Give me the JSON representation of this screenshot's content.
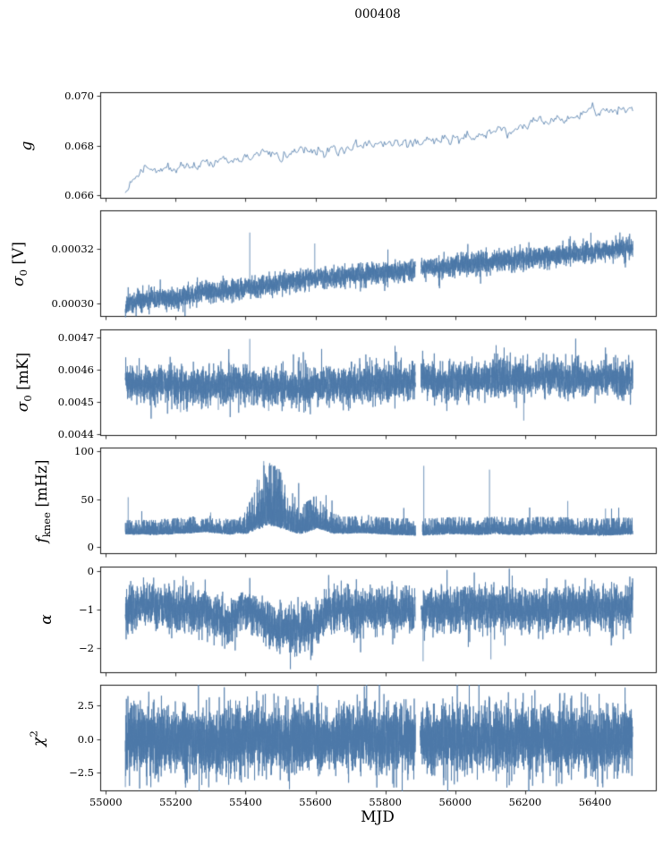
{
  "figure": {
    "title": "000408",
    "background": "#ffffff",
    "axis_color": "#000000",
    "series_color": "#4d79a8"
  },
  "chart_data": {
    "type": "line",
    "title": "000408",
    "xlabel": "MJD",
    "grid": false,
    "legend": null,
    "series_color": "#4d79a8",
    "xlim": [
      54984,
      56574
    ],
    "x_data_range": [
      55056,
      56508
    ],
    "xticks": [
      {
        "v": 55000,
        "t": "55000"
      },
      {
        "v": 55200,
        "t": "55200"
      },
      {
        "v": 55400,
        "t": "55400"
      },
      {
        "v": 55600,
        "t": "55600"
      },
      {
        "v": 55800,
        "t": "55800"
      },
      {
        "v": 56000,
        "t": "56000"
      },
      {
        "v": 56200,
        "t": "56200"
      },
      {
        "v": 56400,
        "t": "56400"
      }
    ],
    "panels": [
      {
        "name": "g",
        "ylabel": {
          "main": "g",
          "sub": "",
          "sup": "",
          "unit": ""
        },
        "ylim": [
          0.06585,
          0.07015
        ],
        "yticks": [
          {
            "v": 0.066,
            "t": "0.066"
          },
          {
            "v": 0.068,
            "t": "0.068"
          },
          {
            "v": 0.07,
            "t": "0.070"
          }
        ],
        "plot": {
          "kind": "line",
          "seed": 11,
          "n": 430,
          "sd": 0.00011,
          "center": [
            [
              55056,
              0.066
            ],
            [
              55070,
              0.0665
            ],
            [
              55090,
              0.0668
            ],
            [
              55110,
              0.0671
            ],
            [
              55130,
              0.067
            ],
            [
              55160,
              0.0671
            ],
            [
              55200,
              0.0671
            ],
            [
              55240,
              0.0672
            ],
            [
              55270,
              0.0674
            ],
            [
              55300,
              0.0674
            ],
            [
              55340,
              0.0675
            ],
            [
              55380,
              0.0675
            ],
            [
              55420,
              0.0676
            ],
            [
              55460,
              0.0677
            ],
            [
              55500,
              0.0676
            ],
            [
              55540,
              0.0677
            ],
            [
              55580,
              0.0677
            ],
            [
              55620,
              0.0678
            ],
            [
              55660,
              0.0678
            ],
            [
              55700,
              0.0679
            ],
            [
              55740,
              0.068
            ],
            [
              55780,
              0.0681
            ],
            [
              55820,
              0.0681
            ],
            [
              55860,
              0.068
            ],
            [
              55900,
              0.0681
            ],
            [
              55940,
              0.0683
            ],
            [
              55980,
              0.0682
            ],
            [
              56020,
              0.0683
            ],
            [
              56060,
              0.0684
            ],
            [
              56100,
              0.0685
            ],
            [
              56140,
              0.0686
            ],
            [
              56180,
              0.0687
            ],
            [
              56220,
              0.0689
            ],
            [
              56260,
              0.069
            ],
            [
              56300,
              0.0691
            ],
            [
              56340,
              0.0692
            ],
            [
              56380,
              0.0693
            ],
            [
              56420,
              0.0694
            ],
            [
              56460,
              0.0694
            ],
            [
              56508,
              0.0694
            ]
          ]
        }
      },
      {
        "name": "sigma0_V",
        "ylabel": {
          "main": "σ",
          "sub": "0",
          "sup": "",
          "unit": " [V]"
        },
        "ylim": [
          0.000295,
          0.000334
        ],
        "yticks": [
          {
            "v": 0.0003,
            "t": "0.00030"
          },
          {
            "v": 0.00032,
            "t": "0.00032"
          }
        ],
        "plot": {
          "kind": "band",
          "seed": 22,
          "n": 5200,
          "h": 3.6e-06,
          "center": [
            [
              55056,
              0.000299
            ],
            [
              55090,
              0.000301
            ],
            [
              55120,
              0.000302
            ],
            [
              55200,
              0.000302
            ],
            [
              55280,
              0.000304
            ],
            [
              55360,
              0.000305
            ],
            [
              55440,
              0.000306
            ],
            [
              55520,
              0.000308
            ],
            [
              55600,
              0.000309
            ],
            [
              55680,
              0.00031
            ],
            [
              55760,
              0.000311
            ],
            [
              55840,
              0.000312
            ],
            [
              55920,
              0.000313
            ],
            [
              56000,
              0.000314
            ],
            [
              56080,
              0.000315
            ],
            [
              56160,
              0.000316
            ],
            [
              56240,
              0.000317
            ],
            [
              56320,
              0.000318
            ],
            [
              56400,
              0.000319
            ],
            [
              56460,
              0.00032
            ],
            [
              56508,
              0.00032
            ]
          ],
          "spikes": [
            [
              55412,
              0.000326
            ],
            [
              55598,
              0.000322
            ]
          ],
          "gaps": [
            [
              55886,
              55902
            ]
          ]
        }
      },
      {
        "name": "sigma0_mK",
        "ylabel": {
          "main": "σ",
          "sub": "0",
          "sup": "",
          "unit": " [mK]"
        },
        "ylim": [
          0.004395,
          0.004725
        ],
        "yticks": [
          {
            "v": 0.0044,
            "t": "0.0044"
          },
          {
            "v": 0.0045,
            "t": "0.0045"
          },
          {
            "v": 0.0046,
            "t": "0.0046"
          },
          {
            "v": 0.0047,
            "t": "0.0047"
          }
        ],
        "plot": {
          "kind": "band",
          "seed": 33,
          "n": 5200,
          "h": 5.5e-05,
          "tailp": 0.05,
          "tailk": 1.6,
          "center": [
            [
              55056,
              0.00456
            ],
            [
              55120,
              0.004555
            ],
            [
              55180,
              0.00455
            ],
            [
              55240,
              0.004548
            ],
            [
              55300,
              0.004552
            ],
            [
              55360,
              0.004555
            ],
            [
              55420,
              0.004555
            ],
            [
              55480,
              0.00455
            ],
            [
              55540,
              0.004545
            ],
            [
              55600,
              0.00455
            ],
            [
              55660,
              0.004552
            ],
            [
              55720,
              0.004555
            ],
            [
              55780,
              0.00456
            ],
            [
              55840,
              0.004565
            ],
            [
              55900,
              0.004568
            ],
            [
              55960,
              0.004565
            ],
            [
              56020,
              0.004565
            ],
            [
              56080,
              0.00457
            ],
            [
              56140,
              0.004572
            ],
            [
              56200,
              0.004572
            ],
            [
              56260,
              0.004573
            ],
            [
              56320,
              0.004574
            ],
            [
              56380,
              0.004574
            ],
            [
              56440,
              0.004575
            ],
            [
              56508,
              0.004577
            ]
          ],
          "spikes": [
            [
              55412,
              0.004695
            ],
            [
              55214,
              0.004468
            ],
            [
              55322,
              0.004475
            ],
            [
              55466,
              0.004472
            ],
            [
              56196,
              0.004442
            ]
          ],
          "gaps": [
            [
              55886,
              55902
            ]
          ]
        }
      },
      {
        "name": "fknee",
        "ylabel": {
          "main": "f",
          "sub": "knee",
          "sup": "",
          "unit": " [mHz]"
        },
        "ylim": [
          -8,
          104
        ],
        "yticks": [
          {
            "v": 0,
            "t": "0"
          },
          {
            "v": 50,
            "t": "50"
          },
          {
            "v": 100,
            "t": "100"
          }
        ],
        "plot": {
          "kind": "expo",
          "seed": 44,
          "n": 6000,
          "center": [
            [
              55056,
              15
            ],
            [
              55150,
              15
            ],
            [
              55220,
              16
            ],
            [
              55280,
              18
            ],
            [
              55310,
              17
            ],
            [
              55360,
              15
            ],
            [
              55400,
              17
            ],
            [
              55430,
              24
            ],
            [
              55450,
              30
            ],
            [
              55470,
              32
            ],
            [
              55490,
              30
            ],
            [
              55510,
              26
            ],
            [
              55530,
              22
            ],
            [
              55560,
              18
            ],
            [
              55580,
              20
            ],
            [
              55600,
              23
            ],
            [
              55620,
              22
            ],
            [
              55650,
              17
            ],
            [
              55680,
              16
            ],
            [
              55720,
              17
            ],
            [
              55760,
              16
            ],
            [
              55820,
              15
            ],
            [
              55880,
              14
            ],
            [
              55940,
              15
            ],
            [
              56000,
              16
            ],
            [
              56060,
              15
            ],
            [
              56120,
              16
            ],
            [
              56180,
              15
            ],
            [
              56240,
              16
            ],
            [
              56300,
              16
            ],
            [
              56360,
              15
            ],
            [
              56420,
              14
            ],
            [
              56508,
              15
            ]
          ],
          "hw": [
            [
              55056,
              5
            ],
            [
              55300,
              6
            ],
            [
              55380,
              5
            ],
            [
              55430,
              14
            ],
            [
              55450,
              22
            ],
            [
              55490,
              22
            ],
            [
              55520,
              16
            ],
            [
              55560,
              10
            ],
            [
              55600,
              12
            ],
            [
              55630,
              8
            ],
            [
              55680,
              6
            ],
            [
              56508,
              6
            ]
          ],
          "spikes": [
            [
              55064,
              52
            ],
            [
              55300,
              36
            ],
            [
              55452,
              90
            ],
            [
              55475,
              86
            ],
            [
              55910,
              85
            ],
            [
              56098,
              81
            ],
            [
              56322,
              48
            ],
            [
              56430,
              40
            ]
          ],
          "gaps": [
            [
              55886,
              55906
            ]
          ]
        }
      },
      {
        "name": "alpha",
        "ylabel": {
          "main": "α",
          "sub": "",
          "sup": "",
          "unit": ""
        },
        "ylim": [
          -2.65,
          0.12
        ],
        "yticks": [
          {
            "v": 0,
            "t": "0"
          },
          {
            "v": -1,
            "t": "−1"
          },
          {
            "v": -2,
            "t": "−2"
          }
        ],
        "plot": {
          "kind": "band",
          "seed": 55,
          "n": 5200,
          "tailp": 0.03,
          "tailk": 1.7,
          "center": [
            [
              55056,
              -1
            ],
            [
              55120,
              -0.95
            ],
            [
              55180,
              -0.95
            ],
            [
              55240,
              -1
            ],
            [
              55290,
              -1.05
            ],
            [
              55320,
              -1.2
            ],
            [
              55345,
              -1.3
            ],
            [
              55370,
              -1.15
            ],
            [
              55390,
              -1
            ],
            [
              55420,
              -1.05
            ],
            [
              55440,
              -1.2
            ],
            [
              55460,
              -1.4
            ],
            [
              55480,
              -1.5
            ],
            [
              55520,
              -1.55
            ],
            [
              55560,
              -1.5
            ],
            [
              55590,
              -1.45
            ],
            [
              55610,
              -1.3
            ],
            [
              55625,
              -1.1
            ],
            [
              55650,
              -1
            ],
            [
              55700,
              -1
            ],
            [
              55760,
              -1.05
            ],
            [
              55820,
              -1
            ],
            [
              55880,
              -1
            ],
            [
              55940,
              -1
            ],
            [
              56000,
              -1
            ],
            [
              56060,
              -0.95
            ],
            [
              56120,
              -1
            ],
            [
              56180,
              -1
            ],
            [
              56240,
              -1
            ],
            [
              56300,
              -0.95
            ],
            [
              56360,
              -1
            ],
            [
              56420,
              -0.95
            ],
            [
              56508,
              -1
            ]
          ],
          "hw": [
            [
              55056,
              0.55
            ],
            [
              55300,
              0.55
            ],
            [
              55350,
              0.5
            ],
            [
              55420,
              0.5
            ],
            [
              55480,
              0.6
            ],
            [
              55560,
              0.6
            ],
            [
              55620,
              0.55
            ],
            [
              56508,
              0.55
            ]
          ],
          "spikes": [
            [
              55908,
              -2.35
            ],
            [
              56102,
              -2.3
            ]
          ],
          "gaps": [
            [
              55886,
              55902
            ]
          ]
        }
      },
      {
        "name": "chi2",
        "ylabel": {
          "main": "χ",
          "sub": "",
          "sup": "2",
          "unit": ""
        },
        "ylim": [
          -3.9,
          4.05
        ],
        "yticks": [
          {
            "v": 2.5,
            "t": "2.5"
          },
          {
            "v": 0,
            "t": "0.0"
          },
          {
            "v": -2.5,
            "t": "−2.5"
          }
        ],
        "plot": {
          "kind": "band",
          "seed": 66,
          "n": 6500,
          "h": 2.4,
          "tailp": 0.05,
          "tailk": 1.5,
          "center": [
            [
              55056,
              0
            ],
            [
              56508,
              0
            ]
          ],
          "gaps": [
            [
              55886,
              55900
            ]
          ]
        }
      }
    ]
  }
}
